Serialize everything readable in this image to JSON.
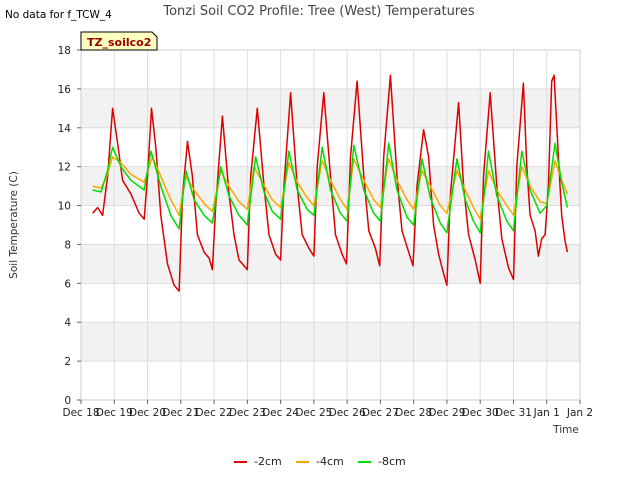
{
  "nodata_text": "No data for f_TCW_4",
  "badge_text": "TZ_soilco2",
  "chart_data": {
    "type": "line",
    "title": "Tonzi Soil CO2 Profile: Tree (West) Temperatures",
    "xlabel": "Time",
    "ylabel": "Soil Temperature (C)",
    "xlim": [
      0,
      15
    ],
    "ylim": [
      0,
      18
    ],
    "x_ticks": [
      0,
      1,
      2,
      3,
      4,
      5,
      6,
      7,
      8,
      9,
      10,
      11,
      12,
      13,
      14,
      15
    ],
    "x_tick_labels": [
      "Dec 18",
      "Dec 19",
      "Dec 20",
      "Dec 21",
      "Dec 22",
      "Dec 23",
      "Dec 24",
      "Dec 25",
      "Dec 26",
      "Dec 27",
      "Dec 28",
      "Dec 29",
      "Dec 30",
      "Dec 31",
      "Jan 1",
      "Jan 2"
    ],
    "y_ticks": [
      0,
      2,
      4,
      6,
      8,
      10,
      12,
      14,
      16,
      18
    ],
    "y_tick_labels": [
      "0",
      "2",
      "4",
      "6",
      "8",
      "10",
      "12",
      "14",
      "16",
      "18"
    ],
    "grid": true,
    "legend_position": "bottom",
    "series": [
      {
        "name": "-2cm",
        "color": "#dd0000",
        "points": [
          [
            0.35,
            9.6
          ],
          [
            0.5,
            9.9
          ],
          [
            0.65,
            9.5
          ],
          [
            0.8,
            11.5
          ],
          [
            0.95,
            15.0
          ],
          [
            1.1,
            13.2
          ],
          [
            1.25,
            11.3
          ],
          [
            1.5,
            10.6
          ],
          [
            1.75,
            9.6
          ],
          [
            1.9,
            9.3
          ],
          [
            2.0,
            11.5
          ],
          [
            2.12,
            15.0
          ],
          [
            2.25,
            13.0
          ],
          [
            2.4,
            9.5
          ],
          [
            2.6,
            7.0
          ],
          [
            2.8,
            5.9
          ],
          [
            2.95,
            5.6
          ],
          [
            3.05,
            10.5
          ],
          [
            3.2,
            13.3
          ],
          [
            3.35,
            11.5
          ],
          [
            3.5,
            8.5
          ],
          [
            3.7,
            7.6
          ],
          [
            3.85,
            7.3
          ],
          [
            3.95,
            6.7
          ],
          [
            4.05,
            10.0
          ],
          [
            4.25,
            14.6
          ],
          [
            4.45,
            10.6
          ],
          [
            4.6,
            8.5
          ],
          [
            4.75,
            7.2
          ],
          [
            4.9,
            6.9
          ],
          [
            5.0,
            6.7
          ],
          [
            5.1,
            11.5
          ],
          [
            5.3,
            15.0
          ],
          [
            5.5,
            11.0
          ],
          [
            5.65,
            8.5
          ],
          [
            5.85,
            7.5
          ],
          [
            6.0,
            7.2
          ],
          [
            6.1,
            11.0
          ],
          [
            6.3,
            15.8
          ],
          [
            6.5,
            11.0
          ],
          [
            6.65,
            8.5
          ],
          [
            6.85,
            7.8
          ],
          [
            7.0,
            7.4
          ],
          [
            7.1,
            12.0
          ],
          [
            7.3,
            15.8
          ],
          [
            7.5,
            11.5
          ],
          [
            7.65,
            8.5
          ],
          [
            7.85,
            7.5
          ],
          [
            7.98,
            7.0
          ],
          [
            8.1,
            12.5
          ],
          [
            8.3,
            16.4
          ],
          [
            8.5,
            11.5
          ],
          [
            8.65,
            8.7
          ],
          [
            8.85,
            7.8
          ],
          [
            8.98,
            6.9
          ],
          [
            9.1,
            12.5
          ],
          [
            9.3,
            16.7
          ],
          [
            9.5,
            11.5
          ],
          [
            9.65,
            8.7
          ],
          [
            9.85,
            7.6
          ],
          [
            9.98,
            6.9
          ],
          [
            10.1,
            11.0
          ],
          [
            10.3,
            13.9
          ],
          [
            10.45,
            12.5
          ],
          [
            10.6,
            9.0
          ],
          [
            10.75,
            7.5
          ],
          [
            10.9,
            6.5
          ],
          [
            11.0,
            5.9
          ],
          [
            11.1,
            10.5
          ],
          [
            11.35,
            15.3
          ],
          [
            11.5,
            11.0
          ],
          [
            11.65,
            8.5
          ],
          [
            11.85,
            7.2
          ],
          [
            12.0,
            6.0
          ],
          [
            12.1,
            11.5
          ],
          [
            12.3,
            15.8
          ],
          [
            12.5,
            11.0
          ],
          [
            12.65,
            8.3
          ],
          [
            12.85,
            6.8
          ],
          [
            13.0,
            6.2
          ],
          [
            13.1,
            12.0
          ],
          [
            13.3,
            16.3
          ],
          [
            13.4,
            12.0
          ],
          [
            13.5,
            9.5
          ],
          [
            13.65,
            8.7
          ],
          [
            13.75,
            7.4
          ],
          [
            13.85,
            8.3
          ],
          [
            13.95,
            8.5
          ],
          [
            14.05,
            11.0
          ],
          [
            14.15,
            16.4
          ],
          [
            14.22,
            16.7
          ],
          [
            14.35,
            12.5
          ],
          [
            14.45,
            9.5
          ],
          [
            14.55,
            8.2
          ],
          [
            14.62,
            7.6
          ]
        ]
      },
      {
        "name": "-4cm",
        "color": "#ffa500",
        "points": [
          [
            0.35,
            11.0
          ],
          [
            0.6,
            10.9
          ],
          [
            0.75,
            11.4
          ],
          [
            0.95,
            12.5
          ],
          [
            1.2,
            12.2
          ],
          [
            1.5,
            11.6
          ],
          [
            1.9,
            11.2
          ],
          [
            2.15,
            12.5
          ],
          [
            2.4,
            11.5
          ],
          [
            2.7,
            10.3
          ],
          [
            2.95,
            9.5
          ],
          [
            3.15,
            11.5
          ],
          [
            3.4,
            10.8
          ],
          [
            3.7,
            10.1
          ],
          [
            3.95,
            9.7
          ],
          [
            4.2,
            11.8
          ],
          [
            4.45,
            11.0
          ],
          [
            4.75,
            10.2
          ],
          [
            5.0,
            9.8
          ],
          [
            5.2,
            12.0
          ],
          [
            5.45,
            11.2
          ],
          [
            5.75,
            10.3
          ],
          [
            6.0,
            9.9
          ],
          [
            6.25,
            12.2
          ],
          [
            6.5,
            11.2
          ],
          [
            6.8,
            10.4
          ],
          [
            7.0,
            10.0
          ],
          [
            7.25,
            12.3
          ],
          [
            7.5,
            11.3
          ],
          [
            7.8,
            10.3
          ],
          [
            8.0,
            9.8
          ],
          [
            8.2,
            12.4
          ],
          [
            8.5,
            11.3
          ],
          [
            8.8,
            10.3
          ],
          [
            9.0,
            9.9
          ],
          [
            9.25,
            12.4
          ],
          [
            9.5,
            11.3
          ],
          [
            9.8,
            10.3
          ],
          [
            10.0,
            9.8
          ],
          [
            10.25,
            11.8
          ],
          [
            10.5,
            11.0
          ],
          [
            10.8,
            10.0
          ],
          [
            11.0,
            9.6
          ],
          [
            11.3,
            11.8
          ],
          [
            11.55,
            10.8
          ],
          [
            11.8,
            9.9
          ],
          [
            12.0,
            9.3
          ],
          [
            12.25,
            11.8
          ],
          [
            12.5,
            10.8
          ],
          [
            12.8,
            10.0
          ],
          [
            13.0,
            9.5
          ],
          [
            13.25,
            12.0
          ],
          [
            13.5,
            11.0
          ],
          [
            13.8,
            10.2
          ],
          [
            14.0,
            10.1
          ],
          [
            14.25,
            12.3
          ],
          [
            14.45,
            11.3
          ],
          [
            14.62,
            10.6
          ]
        ]
      },
      {
        "name": "-8cm",
        "color": "#00dd00",
        "points": [
          [
            0.35,
            10.8
          ],
          [
            0.6,
            10.7
          ],
          [
            0.8,
            11.8
          ],
          [
            0.95,
            13.0
          ],
          [
            1.2,
            12.0
          ],
          [
            1.5,
            11.3
          ],
          [
            1.9,
            10.8
          ],
          [
            2.1,
            12.8
          ],
          [
            2.4,
            11.0
          ],
          [
            2.7,
            9.5
          ],
          [
            2.95,
            8.8
          ],
          [
            3.15,
            11.8
          ],
          [
            3.4,
            10.3
          ],
          [
            3.7,
            9.5
          ],
          [
            3.95,
            9.1
          ],
          [
            4.2,
            12.0
          ],
          [
            4.45,
            10.5
          ],
          [
            4.75,
            9.5
          ],
          [
            5.0,
            9.0
          ],
          [
            5.25,
            12.5
          ],
          [
            5.5,
            10.7
          ],
          [
            5.75,
            9.7
          ],
          [
            6.0,
            9.3
          ],
          [
            6.25,
            12.8
          ],
          [
            6.5,
            10.8
          ],
          [
            6.8,
            9.8
          ],
          [
            7.0,
            9.5
          ],
          [
            7.25,
            13.0
          ],
          [
            7.5,
            10.8
          ],
          [
            7.8,
            9.6
          ],
          [
            8.0,
            9.2
          ],
          [
            8.2,
            13.1
          ],
          [
            8.5,
            10.8
          ],
          [
            8.8,
            9.6
          ],
          [
            9.0,
            9.2
          ],
          [
            9.25,
            13.2
          ],
          [
            9.5,
            10.8
          ],
          [
            9.8,
            9.4
          ],
          [
            10.0,
            9.0
          ],
          [
            10.25,
            12.4
          ],
          [
            10.5,
            10.4
          ],
          [
            10.8,
            9.1
          ],
          [
            11.0,
            8.6
          ],
          [
            11.3,
            12.4
          ],
          [
            11.55,
            10.3
          ],
          [
            11.8,
            9.2
          ],
          [
            12.0,
            8.6
          ],
          [
            12.25,
            12.8
          ],
          [
            12.5,
            10.5
          ],
          [
            12.8,
            9.2
          ],
          [
            13.0,
            8.7
          ],
          [
            13.25,
            12.8
          ],
          [
            13.5,
            10.8
          ],
          [
            13.8,
            9.6
          ],
          [
            14.0,
            10.0
          ],
          [
            14.25,
            13.2
          ],
          [
            14.45,
            11.2
          ],
          [
            14.62,
            9.9
          ]
        ]
      }
    ]
  }
}
